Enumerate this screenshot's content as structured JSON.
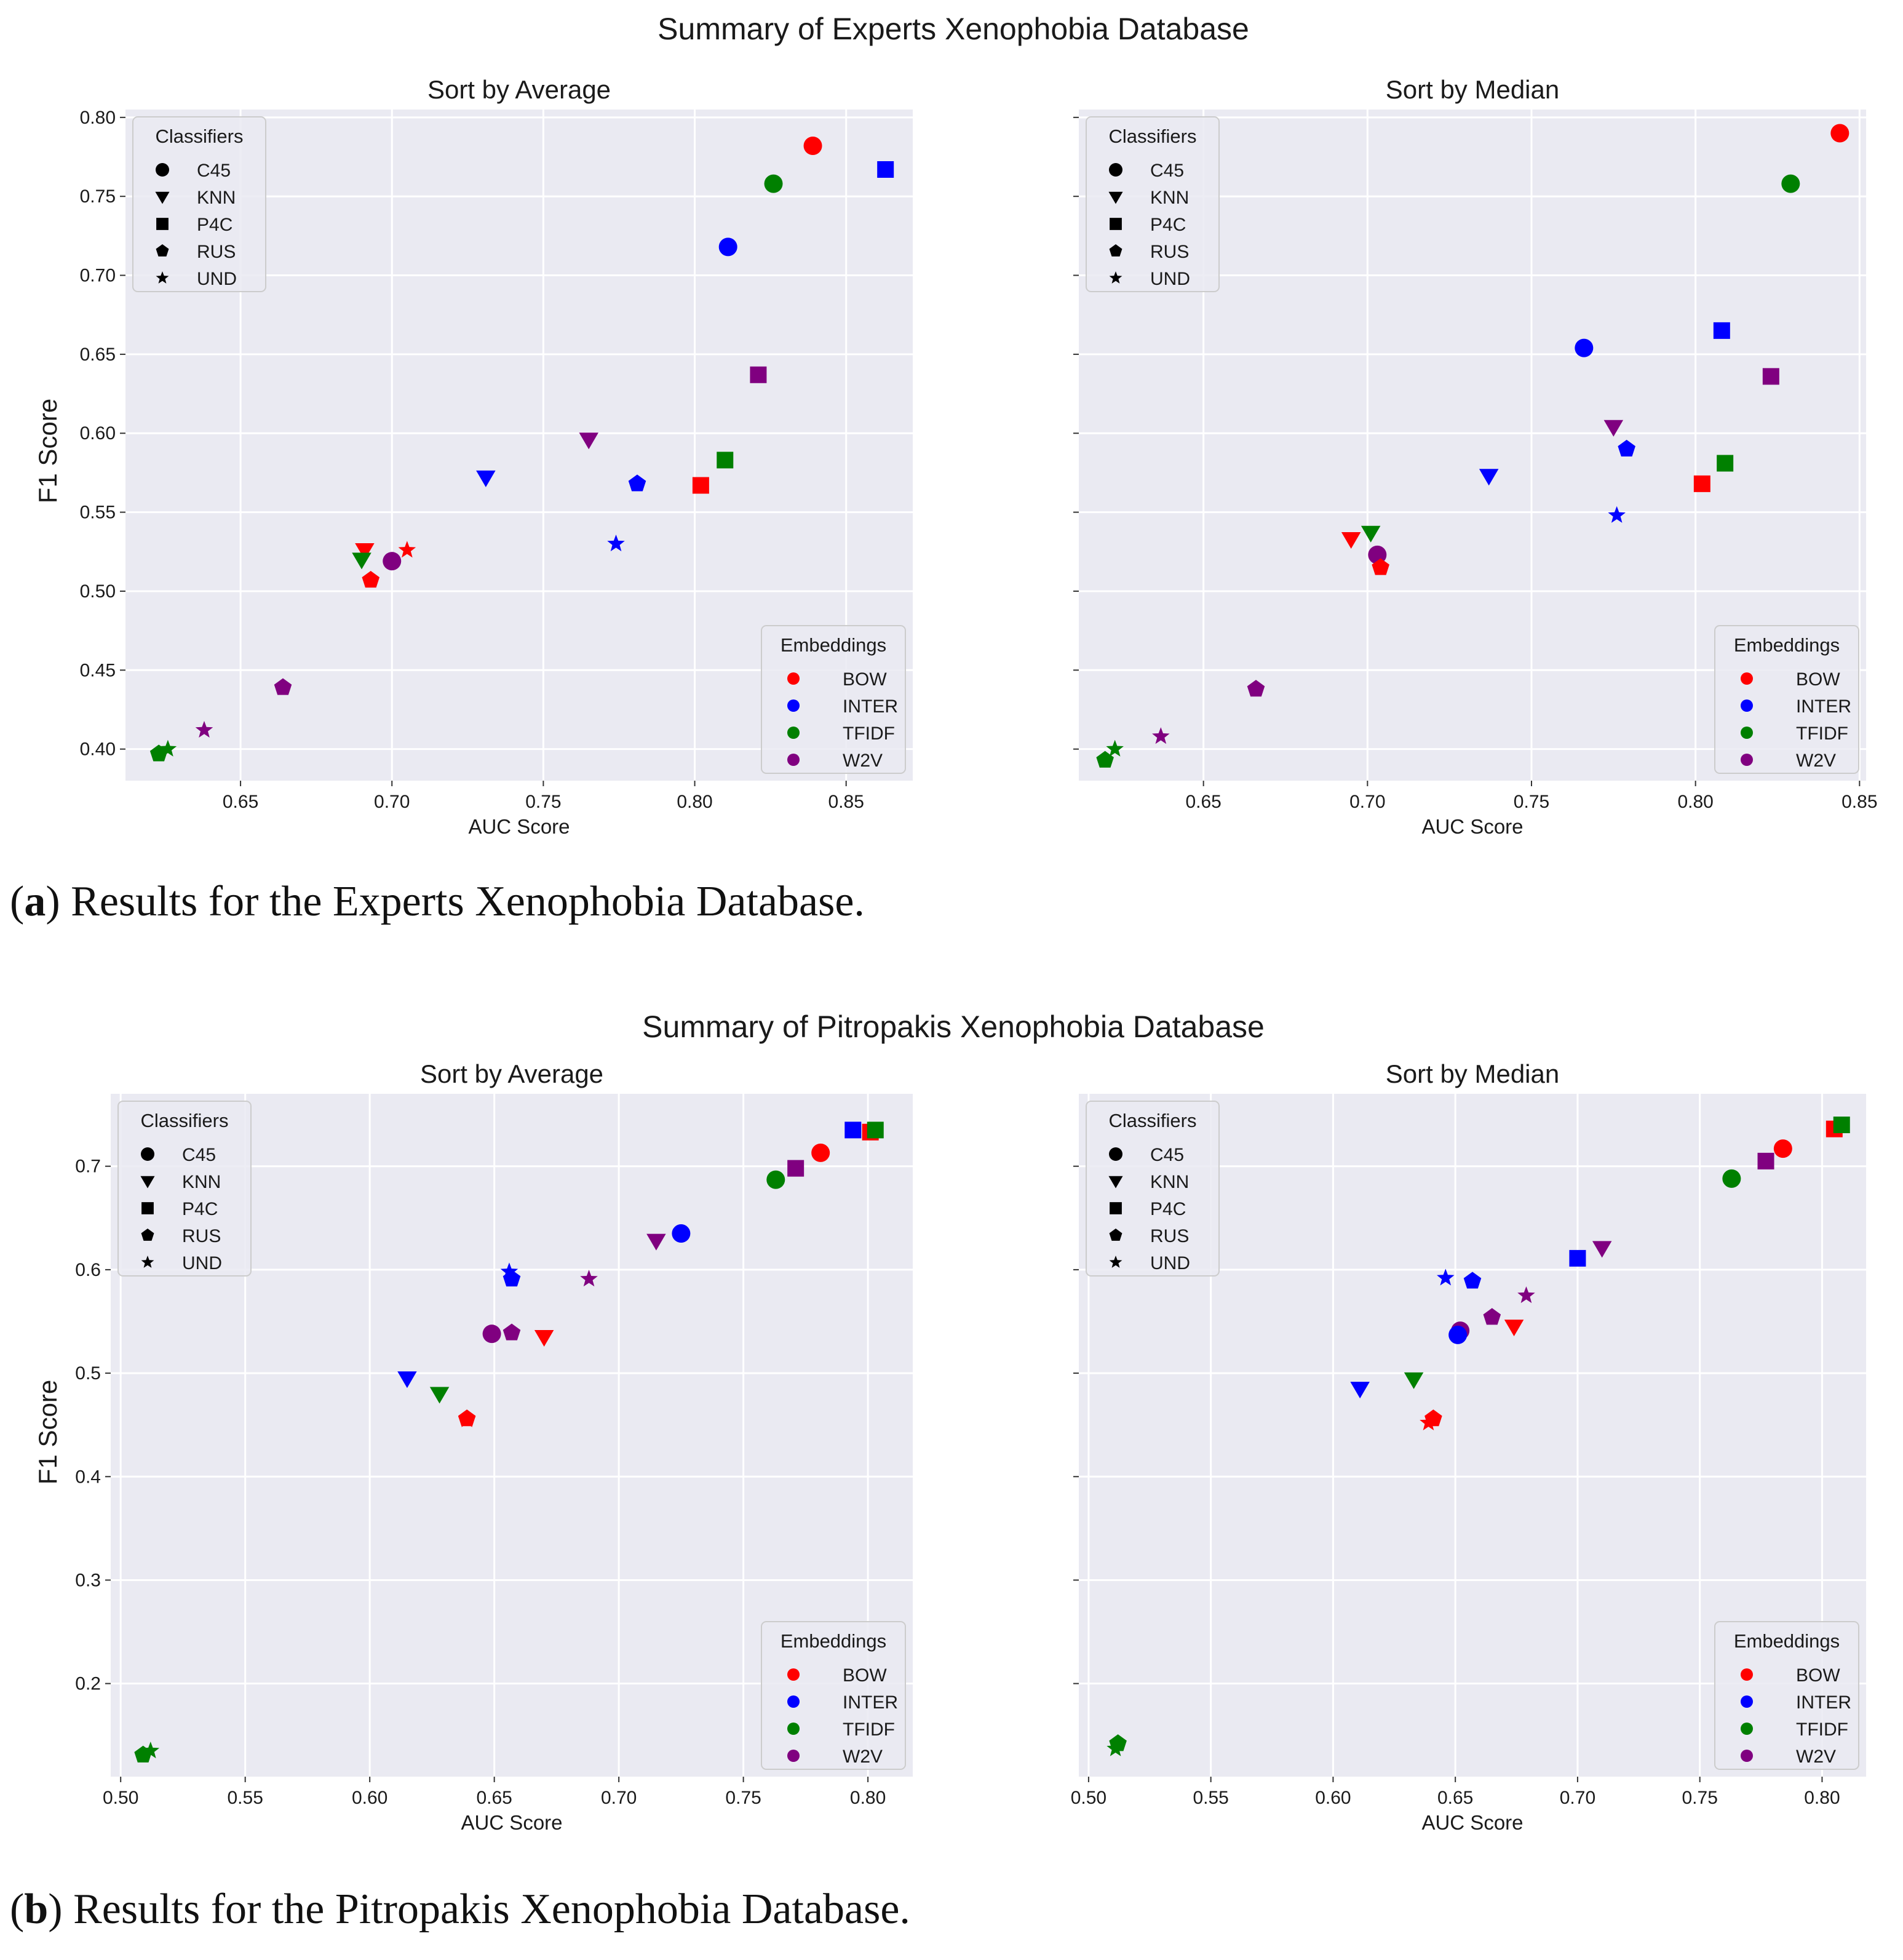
{
  "figures": [
    {
      "suptitle": "Summary of Experts Xenophobia Database",
      "caption_label": "a",
      "caption_text": " Results for the Experts Xenophobia Database.",
      "xlabel": "AUC Score",
      "ylabel": "F1 Score"
    },
    {
      "suptitle": "Summary of Pitropakis Xenophobia Database",
      "caption_label": "b",
      "caption_text": " Results for the Pitropakis Xenophobia Database.",
      "xlabel": "AUC Score",
      "ylabel": "F1 Score"
    }
  ],
  "legends": {
    "classifiers_title": "Classifiers",
    "classifiers": [
      {
        "label": "C45",
        "marker": "circle"
      },
      {
        "label": "KNN",
        "marker": "triangle-down"
      },
      {
        "label": "P4C",
        "marker": "square"
      },
      {
        "label": "RUS",
        "marker": "pentagon"
      },
      {
        "label": "UND",
        "marker": "star"
      }
    ],
    "embeddings_title": "Embeddings",
    "embeddings": [
      {
        "label": "BOW",
        "color": "#ff0000"
      },
      {
        "label": "INTER",
        "color": "#0000ff"
      },
      {
        "label": "TFIDF",
        "color": "#008000"
      },
      {
        "label": "W2V",
        "color": "#800080"
      }
    ]
  },
  "colors": {
    "plot_bg": "#eaeaf2",
    "grid": "#ffffff",
    "BOW": "#ff0000",
    "INTER": "#0000ff",
    "TFIDF": "#008000",
    "W2V": "#800080"
  },
  "chart_data": [
    {
      "type": "scatter",
      "title": "Sort by Average",
      "xlabel": "AUC Score",
      "ylabel": "F1 Score",
      "xlim": [
        0.612,
        0.872
      ],
      "ylim": [
        0.38,
        0.805
      ],
      "xticks": [
        0.65,
        0.7,
        0.75,
        0.8,
        0.85
      ],
      "yticks": [
        0.4,
        0.45,
        0.5,
        0.55,
        0.6,
        0.65,
        0.7,
        0.75,
        0.8
      ],
      "tick_decimals": 2,
      "show_yticklabels": true,
      "points": [
        {
          "e": "BOW",
          "c": "C45",
          "x": 0.839,
          "y": 0.782
        },
        {
          "e": "INTER",
          "c": "P4C",
          "x": 0.863,
          "y": 0.767
        },
        {
          "e": "TFIDF",
          "c": "C45",
          "x": 0.826,
          "y": 0.758
        },
        {
          "e": "INTER",
          "c": "C45",
          "x": 0.811,
          "y": 0.718
        },
        {
          "e": "W2V",
          "c": "P4C",
          "x": 0.821,
          "y": 0.637
        },
        {
          "e": "W2V",
          "c": "KNN",
          "x": 0.765,
          "y": 0.596
        },
        {
          "e": "TFIDF",
          "c": "P4C",
          "x": 0.81,
          "y": 0.583
        },
        {
          "e": "INTER",
          "c": "KNN",
          "x": 0.731,
          "y": 0.572
        },
        {
          "e": "INTER",
          "c": "RUS",
          "x": 0.781,
          "y": 0.568
        },
        {
          "e": "BOW",
          "c": "P4C",
          "x": 0.802,
          "y": 0.567
        },
        {
          "e": "INTER",
          "c": "UND",
          "x": 0.774,
          "y": 0.53
        },
        {
          "e": "BOW",
          "c": "KNN",
          "x": 0.691,
          "y": 0.526
        },
        {
          "e": "BOW",
          "c": "UND",
          "x": 0.705,
          "y": 0.526
        },
        {
          "e": "TFIDF",
          "c": "KNN",
          "x": 0.69,
          "y": 0.52
        },
        {
          "e": "W2V",
          "c": "C45",
          "x": 0.7,
          "y": 0.519
        },
        {
          "e": "BOW",
          "c": "RUS",
          "x": 0.693,
          "y": 0.507
        },
        {
          "e": "W2V",
          "c": "RUS",
          "x": 0.664,
          "y": 0.439
        },
        {
          "e": "W2V",
          "c": "UND",
          "x": 0.638,
          "y": 0.412
        },
        {
          "e": "TFIDF",
          "c": "UND",
          "x": 0.626,
          "y": 0.4
        },
        {
          "e": "TFIDF",
          "c": "RUS",
          "x": 0.623,
          "y": 0.397
        }
      ]
    },
    {
      "type": "scatter",
      "title": "Sort by Median",
      "xlabel": "AUC Score",
      "ylabel": "",
      "xlim": [
        0.612,
        0.852
      ],
      "ylim": [
        0.38,
        0.805
      ],
      "xticks": [
        0.65,
        0.7,
        0.75,
        0.8,
        0.85
      ],
      "yticks": [
        0.4,
        0.45,
        0.5,
        0.55,
        0.6,
        0.65,
        0.7,
        0.75,
        0.8
      ],
      "tick_decimals": 2,
      "show_yticklabels": false,
      "points": [
        {
          "e": "BOW",
          "c": "C45",
          "x": 0.844,
          "y": 0.79
        },
        {
          "e": "TFIDF",
          "c": "C45",
          "x": 0.829,
          "y": 0.758
        },
        {
          "e": "INTER",
          "c": "P4C",
          "x": 0.808,
          "y": 0.665
        },
        {
          "e": "INTER",
          "c": "C45",
          "x": 0.766,
          "y": 0.654
        },
        {
          "e": "W2V",
          "c": "P4C",
          "x": 0.823,
          "y": 0.636
        },
        {
          "e": "W2V",
          "c": "KNN",
          "x": 0.775,
          "y": 0.604
        },
        {
          "e": "INTER",
          "c": "RUS",
          "x": 0.779,
          "y": 0.59
        },
        {
          "e": "TFIDF",
          "c": "P4C",
          "x": 0.809,
          "y": 0.581
        },
        {
          "e": "INTER",
          "c": "KNN",
          "x": 0.737,
          "y": 0.573
        },
        {
          "e": "BOW",
          "c": "P4C",
          "x": 0.802,
          "y": 0.568
        },
        {
          "e": "INTER",
          "c": "UND",
          "x": 0.776,
          "y": 0.548
        },
        {
          "e": "TFIDF",
          "c": "KNN",
          "x": 0.701,
          "y": 0.537
        },
        {
          "e": "BOW",
          "c": "KNN",
          "x": 0.695,
          "y": 0.533
        },
        {
          "e": "W2V",
          "c": "C45",
          "x": 0.703,
          "y": 0.523
        },
        {
          "e": "BOW",
          "c": "RUS",
          "x": 0.704,
          "y": 0.515
        },
        {
          "e": "W2V",
          "c": "RUS",
          "x": 0.666,
          "y": 0.438
        },
        {
          "e": "W2V",
          "c": "UND",
          "x": 0.637,
          "y": 0.408
        },
        {
          "e": "TFIDF",
          "c": "UND",
          "x": 0.623,
          "y": 0.4
        },
        {
          "e": "TFIDF",
          "c": "RUS",
          "x": 0.62,
          "y": 0.393
        }
      ]
    },
    {
      "type": "scatter",
      "title": "Sort by Average",
      "xlabel": "AUC Score",
      "ylabel": "F1 Score",
      "xlim": [
        0.496,
        0.818
      ],
      "ylim": [
        0.11,
        0.77
      ],
      "xticks": [
        0.5,
        0.55,
        0.6,
        0.65,
        0.7,
        0.75,
        0.8
      ],
      "yticks": [
        0.2,
        0.3,
        0.4,
        0.5,
        0.6,
        0.7
      ],
      "tick_decimals": 1,
      "xtick_decimals": 2,
      "show_yticklabels": true,
      "points": [
        {
          "e": "BOW",
          "c": "P4C",
          "x": 0.801,
          "y": 0.733
        },
        {
          "e": "INTER",
          "c": "P4C",
          "x": 0.794,
          "y": 0.735
        },
        {
          "e": "TFIDF",
          "c": "P4C",
          "x": 0.803,
          "y": 0.735
        },
        {
          "e": "BOW",
          "c": "C45",
          "x": 0.781,
          "y": 0.713
        },
        {
          "e": "W2V",
          "c": "P4C",
          "x": 0.771,
          "y": 0.698
        },
        {
          "e": "TFIDF",
          "c": "C45",
          "x": 0.763,
          "y": 0.687
        },
        {
          "e": "INTER",
          "c": "C45",
          "x": 0.725,
          "y": 0.635
        },
        {
          "e": "W2V",
          "c": "KNN",
          "x": 0.715,
          "y": 0.628
        },
        {
          "e": "INTER",
          "c": "UND",
          "x": 0.656,
          "y": 0.598
        },
        {
          "e": "INTER",
          "c": "RUS",
          "x": 0.657,
          "y": 0.591
        },
        {
          "e": "W2V",
          "c": "UND",
          "x": 0.688,
          "y": 0.591
        },
        {
          "e": "W2V",
          "c": "C45",
          "x": 0.649,
          "y": 0.538
        },
        {
          "e": "W2V",
          "c": "RUS",
          "x": 0.657,
          "y": 0.539
        },
        {
          "e": "BOW",
          "c": "KNN",
          "x": 0.67,
          "y": 0.535
        },
        {
          "e": "INTER",
          "c": "KNN",
          "x": 0.615,
          "y": 0.495
        },
        {
          "e": "TFIDF",
          "c": "KNN",
          "x": 0.628,
          "y": 0.48
        },
        {
          "e": "BOW",
          "c": "UND",
          "x": 0.639,
          "y": 0.455
        },
        {
          "e": "BOW",
          "c": "RUS",
          "x": 0.639,
          "y": 0.456
        },
        {
          "e": "TFIDF",
          "c": "UND",
          "x": 0.512,
          "y": 0.135
        },
        {
          "e": "TFIDF",
          "c": "RUS",
          "x": 0.509,
          "y": 0.131
        }
      ]
    },
    {
      "type": "scatter",
      "title": "Sort by Median",
      "xlabel": "AUC Score",
      "ylabel": "",
      "xlim": [
        0.496,
        0.818
      ],
      "ylim": [
        0.11,
        0.77
      ],
      "xticks": [
        0.5,
        0.55,
        0.6,
        0.65,
        0.7,
        0.75,
        0.8
      ],
      "yticks": [
        0.2,
        0.3,
        0.4,
        0.5,
        0.6,
        0.7
      ],
      "tick_decimals": 1,
      "xtick_decimals": 2,
      "show_yticklabels": false,
      "points": [
        {
          "e": "BOW",
          "c": "P4C",
          "x": 0.805,
          "y": 0.736
        },
        {
          "e": "TFIDF",
          "c": "P4C",
          "x": 0.808,
          "y": 0.74
        },
        {
          "e": "BOW",
          "c": "C45",
          "x": 0.784,
          "y": 0.717
        },
        {
          "e": "W2V",
          "c": "P4C",
          "x": 0.777,
          "y": 0.705
        },
        {
          "e": "TFIDF",
          "c": "C45",
          "x": 0.763,
          "y": 0.688
        },
        {
          "e": "W2V",
          "c": "KNN",
          "x": 0.71,
          "y": 0.621
        },
        {
          "e": "INTER",
          "c": "P4C",
          "x": 0.7,
          "y": 0.611
        },
        {
          "e": "INTER",
          "c": "UND",
          "x": 0.646,
          "y": 0.592
        },
        {
          "e": "INTER",
          "c": "RUS",
          "x": 0.657,
          "y": 0.589
        },
        {
          "e": "W2V",
          "c": "UND",
          "x": 0.679,
          "y": 0.575
        },
        {
          "e": "W2V",
          "c": "RUS",
          "x": 0.665,
          "y": 0.554
        },
        {
          "e": "BOW",
          "c": "KNN",
          "x": 0.674,
          "y": 0.545
        },
        {
          "e": "W2V",
          "c": "C45",
          "x": 0.652,
          "y": 0.541
        },
        {
          "e": "INTER",
          "c": "C45",
          "x": 0.651,
          "y": 0.537
        },
        {
          "e": "TFIDF",
          "c": "KNN",
          "x": 0.633,
          "y": 0.494
        },
        {
          "e": "INTER",
          "c": "KNN",
          "x": 0.611,
          "y": 0.485
        },
        {
          "e": "BOW",
          "c": "RUS",
          "x": 0.641,
          "y": 0.456
        },
        {
          "e": "BOW",
          "c": "UND",
          "x": 0.639,
          "y": 0.452
        },
        {
          "e": "TFIDF",
          "c": "RUS",
          "x": 0.512,
          "y": 0.142
        },
        {
          "e": "TFIDF",
          "c": "UND",
          "x": 0.511,
          "y": 0.137
        }
      ]
    }
  ]
}
